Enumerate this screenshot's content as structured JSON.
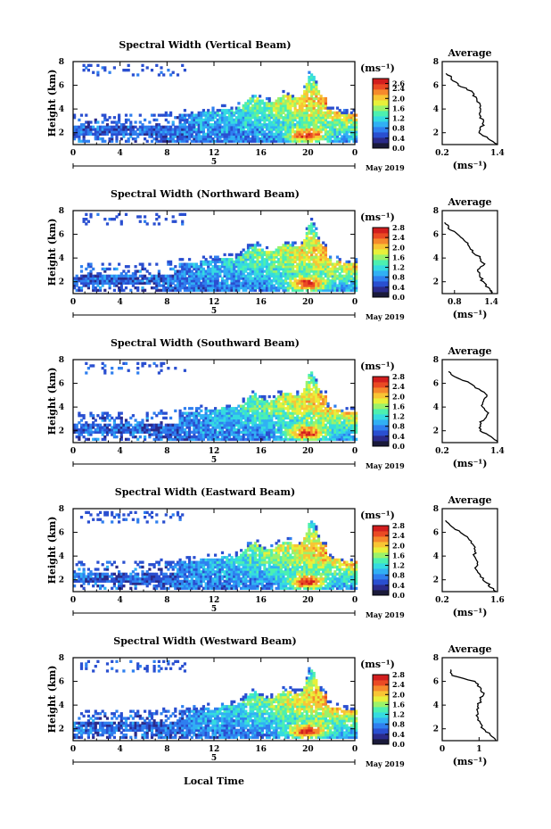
{
  "figure": {
    "xlabel": "Local Time",
    "date_label": "May 2019",
    "day_label": "5",
    "colorbar_unit": "(ms⁻¹)",
    "avg_title": "Average",
    "avg_xlabel": "(ms⁻¹)",
    "colorscale": [
      "#1a1a3a",
      "#2b2b8a",
      "#2a4fd0",
      "#2f7fef",
      "#31b0f4",
      "#35dbe0",
      "#4cf0b0",
      "#9bf26a",
      "#e8f03a",
      "#f8c534",
      "#f58a2c",
      "#ea4a24",
      "#d21e1e"
    ]
  },
  "chart_data": [
    {
      "type": "heatmap",
      "title": "Spectral Width (Vertical Beam)",
      "ylabel": "Height (km)",
      "x_ticks": [
        "0",
        "4",
        "8",
        "12",
        "16",
        "20",
        "0"
      ],
      "y_ticks": [
        "2",
        "4",
        "6",
        "8"
      ],
      "xlim": [
        0,
        24
      ],
      "ylim": [
        1,
        8
      ],
      "colorbar_ticks": [
        "2.6",
        "2.4",
        "2.0",
        "1.6",
        "1.2",
        "0.8",
        "0.4",
        "0.0"
      ],
      "colorbar_range": [
        0,
        2.8
      ],
      "average_profile": {
        "title": "Average",
        "xlabel": "(ms⁻¹)",
        "x_ticks": [
          "0.2",
          "1.4"
        ],
        "xlim": [
          0.2,
          1.4
        ],
        "y_ticks": [
          "2",
          "4",
          "6",
          "8"
        ],
        "ylim": [
          1,
          8
        ],
        "height": [
          1.0,
          1.5,
          2.0,
          2.5,
          3.0,
          3.5,
          4.0,
          4.5,
          5.0,
          5.5,
          6.0,
          6.5,
          7.0
        ],
        "value": [
          1.38,
          1.2,
          1.02,
          1.06,
          1.1,
          1.0,
          1.02,
          0.98,
          0.92,
          0.82,
          0.58,
          0.42,
          0.3
        ]
      }
    },
    {
      "type": "heatmap",
      "title": "Spectral Width (Northward Beam)",
      "ylabel": "Height (km)",
      "x_ticks": [
        "0",
        "4",
        "8",
        "12",
        "16",
        "20",
        "0"
      ],
      "y_ticks": [
        "2",
        "4",
        "6",
        "8"
      ],
      "xlim": [
        0,
        24
      ],
      "ylim": [
        1,
        8
      ],
      "colorbar_ticks": [
        "2.8",
        "2.4",
        "2.0",
        "1.6",
        "1.2",
        "0.8",
        "0.4",
        "0.0"
      ],
      "colorbar_range": [
        0,
        2.8
      ],
      "average_profile": {
        "title": "Average",
        "xlabel": "(ms⁻¹)",
        "x_ticks": [
          "0.8",
          "1.4"
        ],
        "xlim": [
          0.6,
          1.5
        ],
        "y_ticks": [
          "2",
          "4",
          "6",
          "8"
        ],
        "ylim": [
          1,
          8
        ],
        "height": [
          1.0,
          1.5,
          2.0,
          2.5,
          3.0,
          3.5,
          4.0,
          4.5,
          5.0,
          5.5,
          6.0,
          6.5,
          7.0
        ],
        "value": [
          1.42,
          1.34,
          1.25,
          1.22,
          1.2,
          1.28,
          1.22,
          1.1,
          1.05,
          0.95,
          0.85,
          0.72,
          0.65
        ]
      }
    },
    {
      "type": "heatmap",
      "title": "Spectral Width (Southward Beam)",
      "ylabel": "Height (km)",
      "x_ticks": [
        "0",
        "4",
        "8",
        "12",
        "16",
        "20",
        "0"
      ],
      "y_ticks": [
        "2",
        "4",
        "6",
        "8"
      ],
      "xlim": [
        0,
        24
      ],
      "ylim": [
        1,
        8
      ],
      "colorbar_ticks": [
        "2.8",
        "2.4",
        "2.0",
        "1.6",
        "1.2",
        "0.8",
        "0.4",
        "0.0"
      ],
      "colorbar_range": [
        0,
        2.8
      ],
      "average_profile": {
        "title": "Average",
        "xlabel": "(ms⁻¹)",
        "x_ticks": [
          "0.2",
          "1.4"
        ],
        "xlim": [
          0.2,
          1.4
        ],
        "y_ticks": [
          "2",
          "4",
          "6",
          "8"
        ],
        "ylim": [
          1,
          8
        ],
        "height": [
          1.0,
          1.5,
          2.0,
          2.5,
          3.0,
          3.5,
          4.0,
          4.5,
          5.0,
          5.5,
          6.0,
          6.5,
          7.0
        ],
        "value": [
          1.4,
          1.25,
          1.05,
          1.0,
          1.1,
          1.2,
          1.05,
          1.12,
          1.15,
          1.0,
          0.8,
          0.5,
          0.32
        ]
      }
    },
    {
      "type": "heatmap",
      "title": "Spectral Width (Eastward Beam)",
      "ylabel": "Height (km)",
      "x_ticks": [
        "0",
        "4",
        "8",
        "12",
        "16",
        "20",
        "0"
      ],
      "y_ticks": [
        "2",
        "4",
        "6",
        "8"
      ],
      "xlim": [
        0,
        24
      ],
      "ylim": [
        1,
        8
      ],
      "colorbar_ticks": [
        "2.8",
        "2.4",
        "2.0",
        "1.6",
        "1.2",
        "0.8",
        "0.4",
        "0.0"
      ],
      "colorbar_range": [
        0,
        2.8
      ],
      "average_profile": {
        "title": "Average",
        "xlabel": "(ms⁻¹)",
        "x_ticks": [
          "0.2",
          "1.6"
        ],
        "xlim": [
          0.2,
          1.6
        ],
        "y_ticks": [
          "2",
          "4",
          "6",
          "8"
        ],
        "ylim": [
          1,
          8
        ],
        "height": [
          1.0,
          1.5,
          2.0,
          2.5,
          3.0,
          3.5,
          4.0,
          4.5,
          5.0,
          5.5,
          6.0,
          6.5,
          7.0
        ],
        "value": [
          1.55,
          1.4,
          1.25,
          1.15,
          1.05,
          1.1,
          1.0,
          1.05,
          0.95,
          0.85,
          0.65,
          0.45,
          0.32
        ]
      }
    },
    {
      "type": "heatmap",
      "title": "Spectral Width (Westward Beam)",
      "ylabel": "Height (km)",
      "x_ticks": [
        "0",
        "4",
        "8",
        "12",
        "16",
        "20",
        "0"
      ],
      "y_ticks": [
        "2",
        "4",
        "6",
        "8"
      ],
      "xlim": [
        0,
        24
      ],
      "ylim": [
        1,
        8
      ],
      "colorbar_ticks": [
        "2.8",
        "2.4",
        "2.0",
        "1.6",
        "1.2",
        "0.8",
        "0.4",
        "0.0"
      ],
      "colorbar_range": [
        0,
        2.8
      ],
      "average_profile": {
        "title": "Average",
        "xlabel": "(ms⁻¹)",
        "x_ticks": [
          "0",
          "1"
        ],
        "xlim": [
          0,
          1.5
        ],
        "y_ticks": [
          "2",
          "4",
          "6",
          "8"
        ],
        "ylim": [
          1,
          8
        ],
        "height": [
          1.0,
          1.5,
          2.0,
          2.5,
          3.0,
          3.5,
          4.0,
          4.5,
          5.0,
          5.5,
          6.0,
          6.5,
          7.0
        ],
        "value": [
          1.45,
          1.3,
          1.1,
          1.0,
          0.95,
          0.92,
          0.98,
          1.05,
          1.1,
          1.0,
          0.9,
          0.25,
          0.2
        ]
      }
    }
  ]
}
